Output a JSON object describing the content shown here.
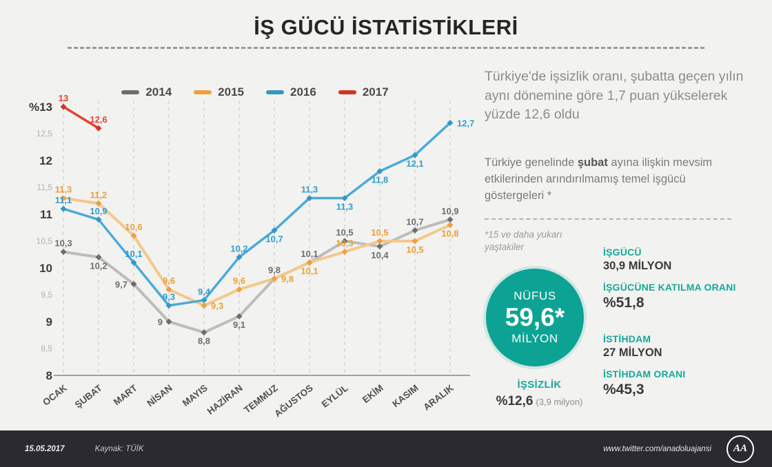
{
  "title": "İŞ GÜCÜ İSTATİSTİKLERİ",
  "right_panel": {
    "headline": "Türkiye'de işsizlik oranı, şubatta geçen yılın aynı dönemine göre 1,7 puan yükselerek yüzde 12,6 oldu",
    "sub_pre": "Türkiye genelinde ",
    "sub_bold": "şubat",
    "sub_post": " ayına ilişkin mevsim etkilerinden arındırılmamış temel işgücü göstergeleri *",
    "footnote": "*15 ve daha yukarı yaştakiler",
    "population_badge": {
      "label_top": "NÜFUS",
      "value": "59,6*",
      "label_bottom": "MİLYON"
    },
    "stats": [
      {
        "label": "İŞGÜCÜ",
        "value": "30,9 MİLYON"
      },
      {
        "label": "İŞGÜCÜNE KATILMA ORANI",
        "value": "%51,8"
      },
      {
        "label": "İSTİHDAM",
        "value": "27 MİLYON"
      },
      {
        "label": "İSTİHDAM ORANI",
        "value": "%45,3"
      }
    ],
    "unemployment": {
      "label": "İŞSİZLİK",
      "value": "%12,6",
      "note": "(3,9 milyon)"
    }
  },
  "footer": {
    "date": "15.05.2017",
    "source": "Kaynak: TÜİK",
    "url": "www.twitter.com/anadoluajansi",
    "logo": "AA"
  },
  "colors": {
    "teal": "#0DA394",
    "footer_bg": "#2B2A30"
  },
  "chart_data": {
    "type": "line",
    "title": "",
    "xlabel": "",
    "ylabel": "%",
    "ylim": [
      8,
      13
    ],
    "grid": "vertical-dashed",
    "legend_position": "top",
    "categories": [
      "OCAK",
      "ŞUBAT",
      "MART",
      "NİSAN",
      "MAYIS",
      "HAZİRAN",
      "TEMMUZ",
      "AĞUSTOS",
      "EYLÜL",
      "EKİM",
      "KASIM",
      "ARALIK"
    ],
    "y_ticks": [
      {
        "v": 13,
        "t": "%13",
        "major": true
      },
      {
        "v": 12.5,
        "t": "12,5",
        "major": false
      },
      {
        "v": 12,
        "t": "12",
        "major": true
      },
      {
        "v": 11.5,
        "t": "11,5",
        "major": false
      },
      {
        "v": 11,
        "t": "11",
        "major": true
      },
      {
        "v": 10.5,
        "t": "10,5",
        "major": false
      },
      {
        "v": 10,
        "t": "10",
        "major": true
      },
      {
        "v": 9.5,
        "t": "9,5",
        "major": false
      },
      {
        "v": 9,
        "t": "9",
        "major": true
      },
      {
        "v": 8.5,
        "t": "8,5",
        "major": false
      },
      {
        "v": 8,
        "t": "8",
        "major": true
      }
    ],
    "series": [
      {
        "name": "2014",
        "values": [
          10.3,
          10.2,
          9.7,
          9.0,
          8.8,
          9.1,
          9.8,
          10.1,
          10.5,
          10.4,
          10.7,
          10.9
        ],
        "labels": [
          "10,3",
          "10,2",
          "9,7",
          "9",
          "8,8",
          "9,1",
          "9,8",
          "10,1",
          "10,5",
          "10,4",
          "10,7",
          "10,9"
        ],
        "label_pos": [
          "a",
          "b",
          "l",
          "l",
          "b",
          "b",
          "a",
          "a",
          "a",
          "b",
          "a",
          "a"
        ],
        "line_color": "#bcbcbc",
        "marker_color": "#6d6d6d",
        "label_color": "#6d6d6d",
        "line_width": 4
      },
      {
        "name": "2015",
        "values": [
          11.3,
          11.2,
          10.6,
          9.6,
          9.3,
          9.6,
          9.8,
          10.1,
          10.3,
          10.5,
          10.5,
          10.8
        ],
        "labels": [
          "11,3",
          "11,2",
          "10,6",
          "9,6",
          "9,3",
          "9,6",
          "9,8",
          "10,1",
          "10,3",
          "10,5",
          "10,5",
          "10,8"
        ],
        "label_pos": [
          "a",
          "a",
          "a",
          "a",
          "r",
          "a",
          "r",
          "b",
          "a",
          "a",
          "b",
          "b"
        ],
        "line_color": "#f4c78a",
        "marker_color": "#eda03b",
        "label_color": "#ec9f35",
        "line_width": 4
      },
      {
        "name": "2016",
        "values": [
          11.1,
          10.9,
          10.1,
          9.3,
          9.4,
          10.2,
          10.7,
          11.3,
          11.3,
          11.8,
          12.1,
          12.7
        ],
        "labels": [
          "11,1",
          "10,9",
          "10,1",
          "9,3",
          "9,4",
          "10,2",
          "10,7",
          "11,3",
          "11,3",
          "11,8",
          "12,1",
          "12,7"
        ],
        "label_pos": [
          "a",
          "a",
          "a",
          "a",
          "a",
          "a",
          "b",
          "a",
          "b",
          "b",
          "b",
          "r"
        ],
        "line_color": "#4aaad8",
        "marker_color": "#3597c6",
        "label_color": "#2f9dce",
        "line_width": 3.5
      },
      {
        "name": "2017",
        "values": [
          13,
          12.6
        ],
        "labels": [
          "13",
          "12,6"
        ],
        "label_pos": [
          "a",
          "a"
        ],
        "line_color": "#e2432e",
        "marker_color": "#cf3722",
        "label_color": "#e2432e",
        "line_width": 3.5
      }
    ]
  }
}
